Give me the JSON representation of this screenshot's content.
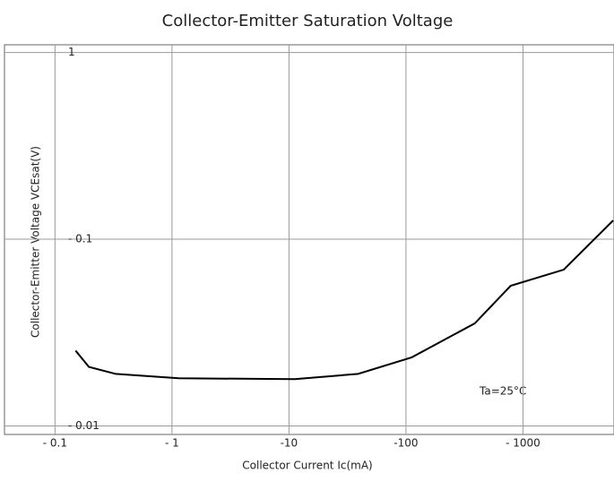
{
  "chart_data": {
    "type": "line",
    "title": "Collector-Emitter Saturation Voltage",
    "x_label": "Collector Current   Ic(mA)",
    "y_label": "Collector-Emitter Voltage   VCEsat(V)",
    "annotation": "Ta=25°C",
    "log_x": true,
    "log_y": true,
    "grid": true,
    "xlim": [
      0.037,
      6000
    ],
    "ylim": [
      0.009,
      1.1
    ],
    "xticks": [
      {
        "value": 0.1,
        "label": "- 0.1"
      },
      {
        "value": 1,
        "label": "- 1"
      },
      {
        "value": 10,
        "label": "-10"
      },
      {
        "value": 100,
        "label": "-100"
      },
      {
        "value": 1000,
        "label": "- 1000"
      }
    ],
    "yticks": [
      {
        "value": 0.01,
        "label": "- 0.01"
      },
      {
        "value": 0.1,
        "label": "- 0.1"
      },
      1
    ],
    "series": [
      {
        "color": "#000000",
        "x": [
          0.15,
          0.195,
          0.33,
          1.14,
          11.2,
          39,
          112,
          387,
          785,
          2230,
          5900
        ],
        "values": [
          0.0253,
          0.0207,
          0.019,
          0.018,
          0.0178,
          0.019,
          0.0233,
          0.0354,
          0.0563,
          0.0687,
          0.126
        ]
      }
    ]
  }
}
